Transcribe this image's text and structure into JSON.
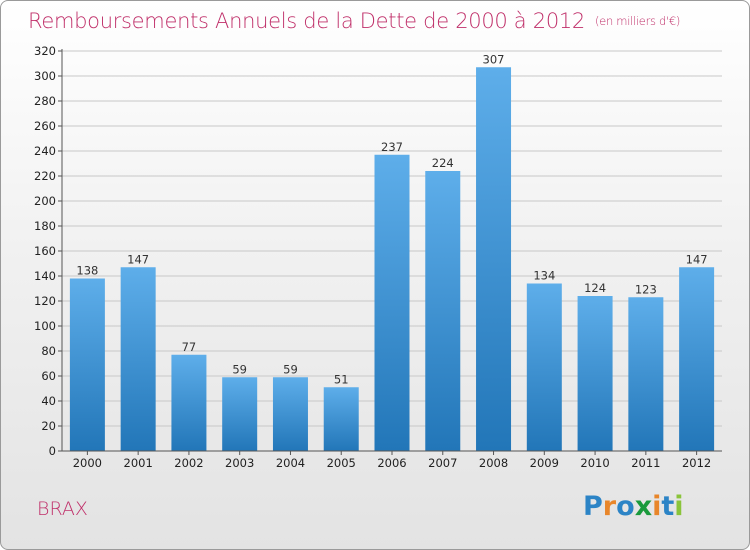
{
  "header": {
    "title": "Remboursements Annuels de la Dette de 2000 à 2012",
    "unit_note": "(en milliers d'€)"
  },
  "footer": {
    "commune": "BRAX",
    "logo_letters": [
      "P",
      "r",
      "o",
      "x",
      "i",
      "t",
      "i"
    ],
    "logo_colors": [
      "#2c84c6",
      "#e8862a",
      "#2c84c6",
      "#1a9a3c",
      "#e8862a",
      "#2c84c6",
      "#8ac43a"
    ]
  },
  "colors": {
    "title": "#c0306a",
    "bar_top": "#5eaeea",
    "bar_bottom": "#2276b8",
    "grid": "#c8c8c8",
    "axis": "#555555"
  },
  "chart_data": {
    "type": "bar",
    "title": "Remboursements Annuels de la Dette de 2000 à 2012",
    "subtitle": "(en milliers d'€)",
    "xlabel": "",
    "ylabel": "",
    "categories": [
      "2000",
      "2001",
      "2002",
      "2003",
      "2004",
      "2005",
      "2006",
      "2007",
      "2008",
      "2009",
      "2010",
      "2011",
      "2012"
    ],
    "values": [
      138,
      147,
      77,
      59,
      59,
      51,
      237,
      224,
      307,
      134,
      124,
      123,
      147
    ],
    "ylim": [
      0,
      320
    ],
    "yticks": [
      0,
      20,
      40,
      60,
      80,
      100,
      120,
      140,
      160,
      180,
      200,
      220,
      240,
      260,
      280,
      300,
      320
    ],
    "grid": true,
    "data_labels": true,
    "legend": "none"
  }
}
